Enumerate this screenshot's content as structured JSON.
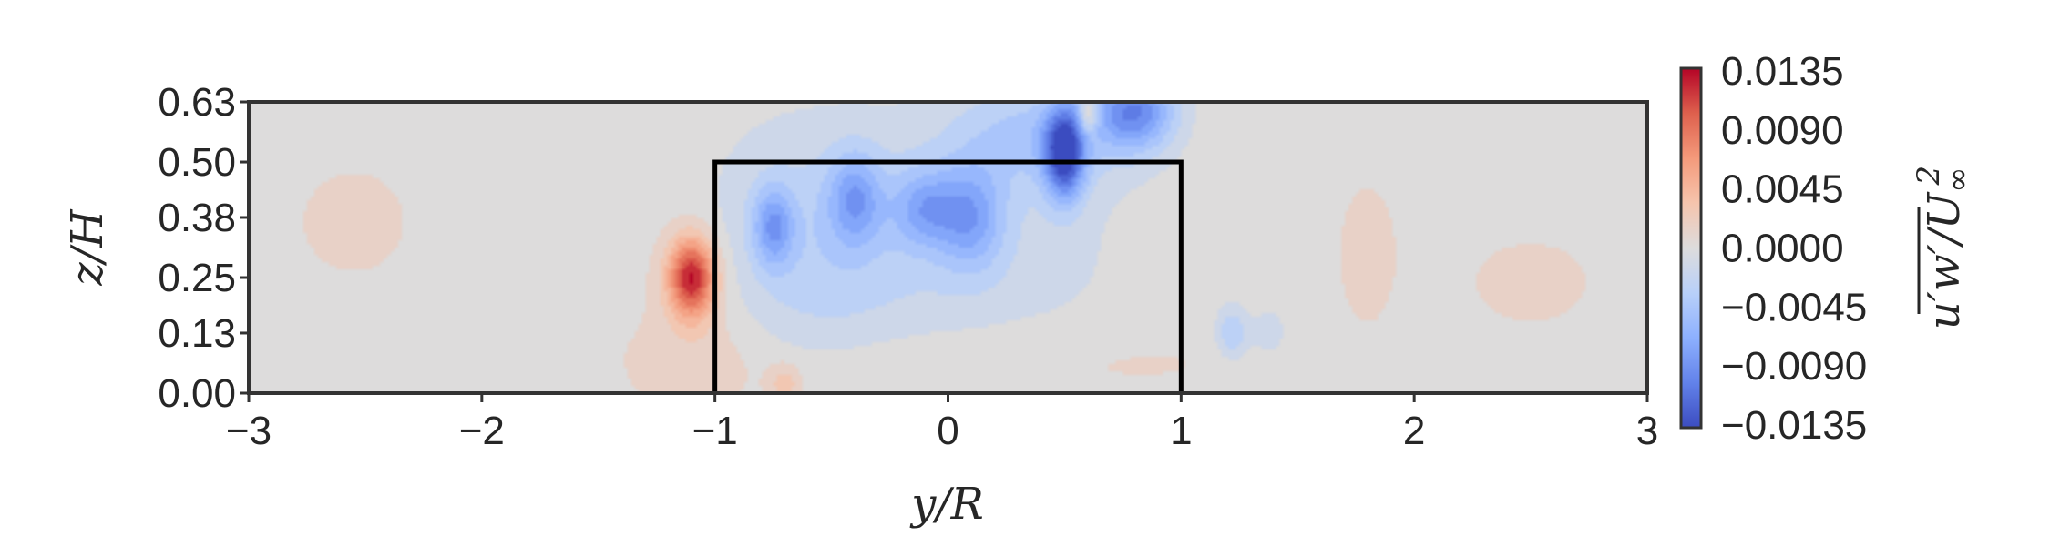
{
  "chart_data": {
    "type": "heatmap",
    "title": "",
    "xlabel": "y/R",
    "ylabel": "z/H",
    "colorbar_label": "u'w'/U∞²",
    "colorbar_label_parts": {
      "base": "u′w′",
      "denominator": "/U",
      "denominator_subscript": "∞",
      "denominator_superscript": "2"
    },
    "xlim": [
      -3,
      3
    ],
    "ylim": [
      0,
      0.63
    ],
    "x_ticks": [
      -3,
      -2,
      -1,
      0,
      1,
      2,
      3
    ],
    "x_tick_labels": [
      "−3",
      "−2",
      "−1",
      "0",
      "1",
      "2",
      "3"
    ],
    "y_ticks": [
      0.0,
      0.13,
      0.25,
      0.38,
      0.5,
      0.63
    ],
    "y_tick_labels": [
      "0.00",
      "0.13",
      "0.25",
      "0.38",
      "0.50",
      "0.63"
    ],
    "colorbar": {
      "min": -0.0135,
      "max": 0.0135,
      "ticks": [
        0.0135,
        0.009,
        0.0045,
        0.0,
        -0.0045,
        -0.009,
        -0.0135
      ],
      "tick_labels": [
        "0.0135",
        "0.0090",
        "0.0045",
        "0.0000",
        "−0.0045",
        "−0.0090",
        "−0.0135"
      ],
      "colormap": "coolwarm",
      "low_color": "#3b4cc0",
      "mid_color": "#dddcdc",
      "high_color": "#b40426"
    },
    "grid": false,
    "background_value": 0.0005,
    "features": [
      {
        "y": -1.1,
        "z": 0.25,
        "sy": 0.07,
        "sz": 0.06,
        "value": 0.0125
      },
      {
        "y": -1.05,
        "z": 0.15,
        "sy": 0.2,
        "sz": 0.18,
        "value": 0.0015
      },
      {
        "y": -0.75,
        "z": 0.36,
        "sy": 0.06,
        "sz": 0.06,
        "value": -0.0065
      },
      {
        "y": -0.6,
        "z": 0.31,
        "sy": 0.35,
        "sz": 0.2,
        "value": -0.0035
      },
      {
        "y": -0.4,
        "z": 0.42,
        "sy": 0.08,
        "sz": 0.07,
        "value": -0.006
      },
      {
        "y": -0.1,
        "z": 0.4,
        "sy": 0.1,
        "sz": 0.06,
        "value": -0.0055
      },
      {
        "y": 0.1,
        "z": 0.38,
        "sy": 0.1,
        "sz": 0.08,
        "value": -0.006
      },
      {
        "y": 0.2,
        "z": 0.32,
        "sy": 0.45,
        "sz": 0.22,
        "value": -0.002
      },
      {
        "y": 0.5,
        "z": 0.52,
        "sy": 0.06,
        "sz": 0.07,
        "value": -0.013
      },
      {
        "y": 0.8,
        "z": 0.61,
        "sy": 0.12,
        "sz": 0.06,
        "value": -0.0095
      },
      {
        "y": 0.38,
        "z": 0.56,
        "sy": 0.25,
        "sz": 0.08,
        "value": -0.004
      },
      {
        "y": 0.6,
        "z": 0.6,
        "sy": 0.03,
        "sz": 0.03,
        "value": 0.006
      },
      {
        "y": 1.22,
        "z": 0.13,
        "sy": 0.05,
        "sz": 0.04,
        "value": -0.004
      },
      {
        "y": 1.38,
        "z": 0.13,
        "sy": 0.05,
        "sz": 0.04,
        "value": -0.002
      },
      {
        "y": -2.55,
        "z": 0.37,
        "sy": 0.18,
        "sz": 0.09,
        "value": 0.0015
      },
      {
        "y": 2.5,
        "z": 0.24,
        "sy": 0.2,
        "sz": 0.07,
        "value": 0.0015
      },
      {
        "y": 1.8,
        "z": 0.3,
        "sy": 0.1,
        "sz": 0.12,
        "value": 0.0015
      },
      {
        "y": 0.0,
        "z": 0.07,
        "sy": 0.8,
        "sz": 0.06,
        "value": 0.0012
      },
      {
        "y": -0.7,
        "z": 0.02,
        "sy": 0.05,
        "sz": 0.03,
        "value": 0.003
      }
    ],
    "overlay": {
      "name": "turbine-outline",
      "points": [
        [
          -1,
          0
        ],
        [
          -1,
          0.5
        ],
        [
          1,
          0.5
        ],
        [
          1,
          0
        ]
      ],
      "color": "#000000"
    }
  }
}
